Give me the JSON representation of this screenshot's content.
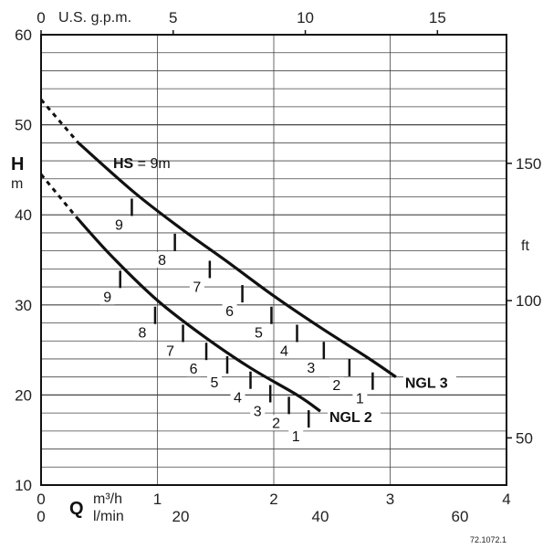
{
  "chart_data": {
    "type": "line",
    "title": "",
    "x_axis_primary": {
      "label": "m³/h",
      "symbol": "Q",
      "range": [
        0,
        4
      ],
      "ticks": [
        "0",
        "1",
        "2",
        "3",
        "4"
      ]
    },
    "x_axis_secondary": {
      "label": "l/min",
      "ticks": [
        "0",
        "20",
        "40",
        "60"
      ],
      "tick_values": [
        0,
        20,
        40,
        60
      ]
    },
    "x_axis_top": {
      "label": "U.S. g.p.m.",
      "ticks": [
        "0",
        "5",
        "10",
        "15"
      ],
      "tick_values": [
        0,
        5,
        10,
        15
      ]
    },
    "y_axis_left": {
      "symbol": "H",
      "unit": "m",
      "range": [
        10,
        60
      ],
      "ticks": [
        "10",
        "20",
        "30",
        "40",
        "50",
        "60"
      ]
    },
    "y_axis_right": {
      "unit": "ft",
      "ticks": [
        "50",
        "100",
        "150"
      ],
      "tick_values": [
        50,
        100,
        150
      ]
    },
    "grid": true,
    "hs_label": {
      "bold": "HS",
      "rest": " = 9m"
    },
    "series": [
      {
        "name": "NGL 3",
        "dashed": [
          [
            0.0,
            52.8
          ],
          [
            0.32,
            48.0
          ]
        ],
        "points": [
          [
            0.32,
            48.0
          ],
          [
            0.8,
            42.5
          ],
          [
            1.2,
            38.5
          ],
          [
            1.6,
            34.8
          ],
          [
            2.0,
            31.0
          ],
          [
            2.4,
            27.5
          ],
          [
            2.8,
            24.2
          ],
          [
            3.05,
            22.0
          ]
        ],
        "steps": [
          {
            "label": "9",
            "q": 0.78,
            "h": 41.5
          },
          {
            "label": "8",
            "q": 1.15,
            "h": 37.6
          },
          {
            "label": "7",
            "q": 1.45,
            "h": 34.6
          },
          {
            "label": "6",
            "q": 1.73,
            "h": 31.9
          },
          {
            "label": "5",
            "q": 1.98,
            "h": 29.5
          },
          {
            "label": "4",
            "q": 2.2,
            "h": 27.5
          },
          {
            "label": "3",
            "q": 2.43,
            "h": 25.6
          },
          {
            "label": "2",
            "q": 2.65,
            "h": 23.7
          },
          {
            "label": "1",
            "q": 2.85,
            "h": 22.2
          }
        ]
      },
      {
        "name": "NGL 2",
        "dashed": [
          [
            0.0,
            44.5
          ],
          [
            0.3,
            39.8
          ]
        ],
        "points": [
          [
            0.3,
            39.8
          ],
          [
            0.6,
            35.5
          ],
          [
            1.0,
            30.5
          ],
          [
            1.4,
            26.5
          ],
          [
            1.8,
            23.0
          ],
          [
            2.2,
            20.0
          ],
          [
            2.4,
            18.2
          ]
        ],
        "steps": [
          {
            "label": "9",
            "q": 0.68,
            "h": 33.5
          },
          {
            "label": "8",
            "q": 0.98,
            "h": 29.5
          },
          {
            "label": "7",
            "q": 1.22,
            "h": 27.5
          },
          {
            "label": "6",
            "q": 1.42,
            "h": 25.5
          },
          {
            "label": "5",
            "q": 1.6,
            "h": 24.0
          },
          {
            "label": "4",
            "q": 1.8,
            "h": 22.3
          },
          {
            "label": "3",
            "q": 1.97,
            "h": 20.8
          },
          {
            "label": "2",
            "q": 2.13,
            "h": 19.5
          },
          {
            "label": "1",
            "q": 2.3,
            "h": 18.0
          }
        ]
      }
    ]
  },
  "figure_id": "72.1072.1"
}
